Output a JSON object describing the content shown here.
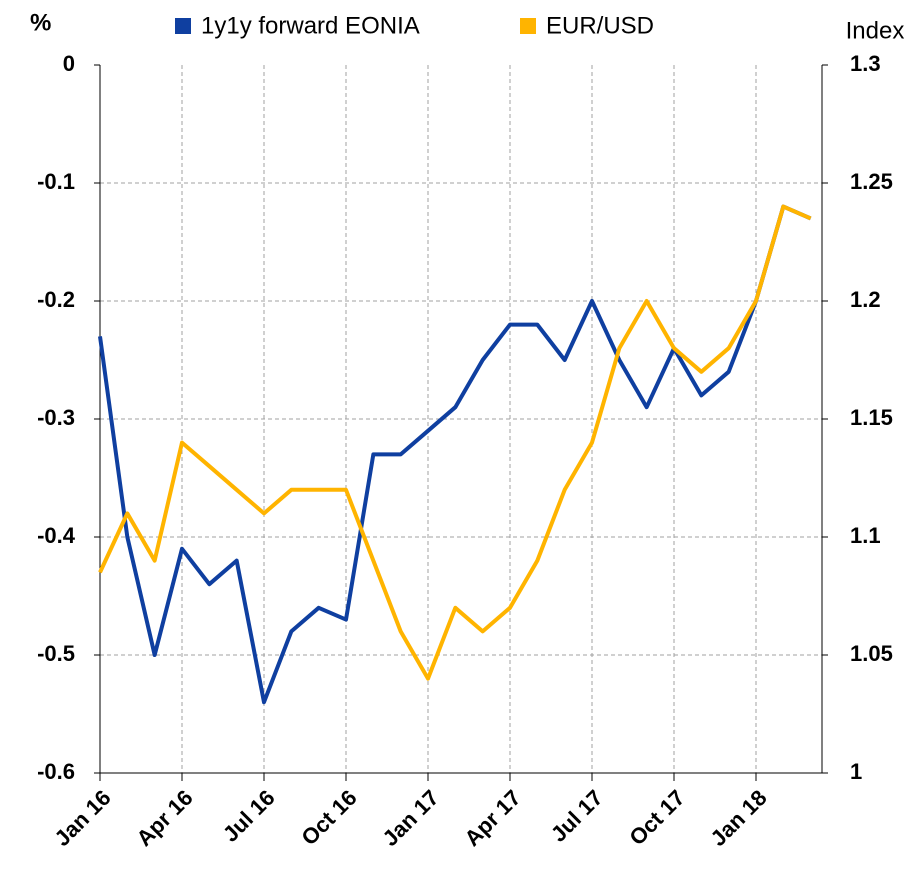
{
  "chart_data": {
    "type": "line",
    "y_label": "%",
    "y2_label": "Index",
    "x": [
      "2016-01",
      "2016-02",
      "2016-03",
      "2016-04",
      "2016-05",
      "2016-06",
      "2016-07",
      "2016-08",
      "2016-09",
      "2016-10",
      "2016-11",
      "2016-12",
      "2017-01",
      "2017-02",
      "2017-03",
      "2017-04",
      "2017-05",
      "2017-06",
      "2017-07",
      "2017-08",
      "2017-09",
      "2017-10",
      "2017-11",
      "2017-12",
      "2018-01",
      "2018-02",
      "2018-03"
    ],
    "series": [
      {
        "name": "1y1y forward EONIA",
        "color": "#0f3fa0",
        "axis": "y",
        "values": [
          -0.23,
          -0.4,
          -0.5,
          -0.41,
          -0.44,
          -0.42,
          -0.54,
          -0.48,
          -0.46,
          -0.47,
          -0.33,
          -0.33,
          -0.31,
          -0.29,
          -0.25,
          -0.22,
          -0.22,
          -0.25,
          -0.2,
          -0.25,
          -0.29,
          -0.24,
          -0.28,
          -0.26,
          -0.2,
          -0.12,
          -0.13
        ]
      },
      {
        "name": "EUR/USD",
        "color": "#ffb400",
        "axis": "y2",
        "values": [
          1.085,
          1.11,
          1.09,
          1.14,
          1.13,
          1.12,
          1.11,
          1.12,
          1.12,
          1.12,
          1.09,
          1.06,
          1.04,
          1.07,
          1.06,
          1.07,
          1.09,
          1.12,
          1.14,
          1.18,
          1.2,
          1.18,
          1.17,
          1.18,
          1.2,
          1.24,
          1.235
        ]
      }
    ],
    "ylim": [
      -0.6,
      0
    ],
    "yticks": [
      0,
      -0.1,
      -0.2,
      -0.3,
      -0.4,
      -0.5,
      -0.6
    ],
    "y2lim": [
      1,
      1.3
    ],
    "y2ticks": [
      1.3,
      1.25,
      1.2,
      1.15,
      1.1,
      1.05,
      1
    ],
    "xticks": [
      {
        "value": "2016-01",
        "label": "Jan 16"
      },
      {
        "value": "2016-04",
        "label": "Apr 16"
      },
      {
        "value": "2016-07",
        "label": "Jul 16"
      },
      {
        "value": "2016-10",
        "label": "Oct 16"
      },
      {
        "value": "2017-01",
        "label": "Jan 17"
      },
      {
        "value": "2017-04",
        "label": "Apr 17"
      },
      {
        "value": "2017-07",
        "label": "Jul 17"
      },
      {
        "value": "2017-10",
        "label": "Oct 17"
      },
      {
        "value": "2018-01",
        "label": "Jan 18"
      }
    ],
    "grid": true,
    "legend": "top"
  }
}
